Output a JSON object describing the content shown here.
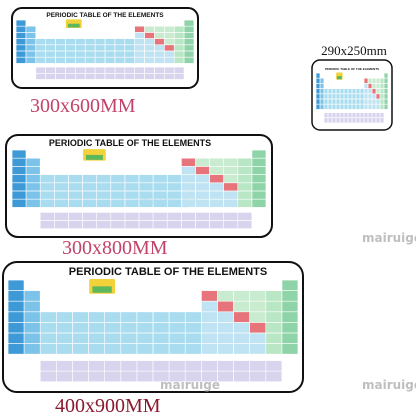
{
  "products": [
    {
      "title": "PERIODIC TABLE OF THE ELEMENTS",
      "size": "300x600MM"
    },
    {
      "title": "PERIODIC TABLE OF THE ELEMENTS",
      "size": "290x250mm"
    },
    {
      "title": "PERIODIC TABLE OF THE ELEMENTS",
      "size": "300x800MM"
    },
    {
      "title": "PERIODIC TABLE OF THE ELEMENTS",
      "size": "400x900MM"
    }
  ],
  "watermark": "mairuige"
}
